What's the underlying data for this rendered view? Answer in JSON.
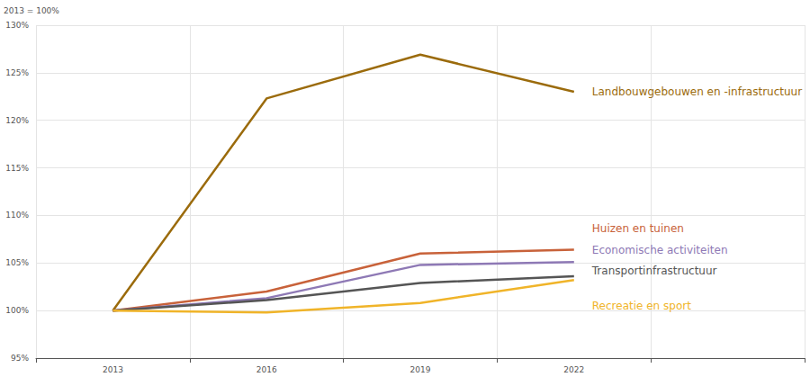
{
  "chart_data": {
    "type": "line",
    "ylabel": "2013 = 100%",
    "categories": [
      "2013",
      "2016",
      "2019",
      "2022",
      null
    ],
    "series": [
      {
        "name": "Landbouwgebouwen en -infrastructuur",
        "color": "#9b6b0c",
        "values": [
          100,
          122.3,
          126.9,
          123.0,
          null
        ]
      },
      {
        "name": "Huizen en tuinen",
        "color": "#c8623a",
        "values": [
          100,
          102.0,
          106.0,
          106.4,
          null
        ]
      },
      {
        "name": "Economische activiteiten",
        "color": "#8e79b5",
        "values": [
          100,
          101.3,
          104.8,
          105.1,
          null
        ]
      },
      {
        "name": "Transportinfrastructuur",
        "color": "#555555",
        "values": [
          100,
          101.1,
          102.9,
          103.6,
          null
        ]
      },
      {
        "name": "Recreatie en sport",
        "color": "#f0b429",
        "values": [
          100,
          99.8,
          100.8,
          103.2,
          null
        ]
      }
    ],
    "ylim": [
      95,
      130
    ],
    "yticks": [
      {
        "value": 95,
        "label": "95%"
      },
      {
        "value": 100,
        "label": "100%"
      },
      {
        "value": 105,
        "label": "105%"
      },
      {
        "value": 110,
        "label": "110%"
      },
      {
        "value": 115,
        "label": "115%"
      },
      {
        "value": 120,
        "label": "120%"
      },
      {
        "value": 125,
        "label": "125%"
      },
      {
        "value": 130,
        "label": "130%"
      }
    ],
    "grid": true
  }
}
